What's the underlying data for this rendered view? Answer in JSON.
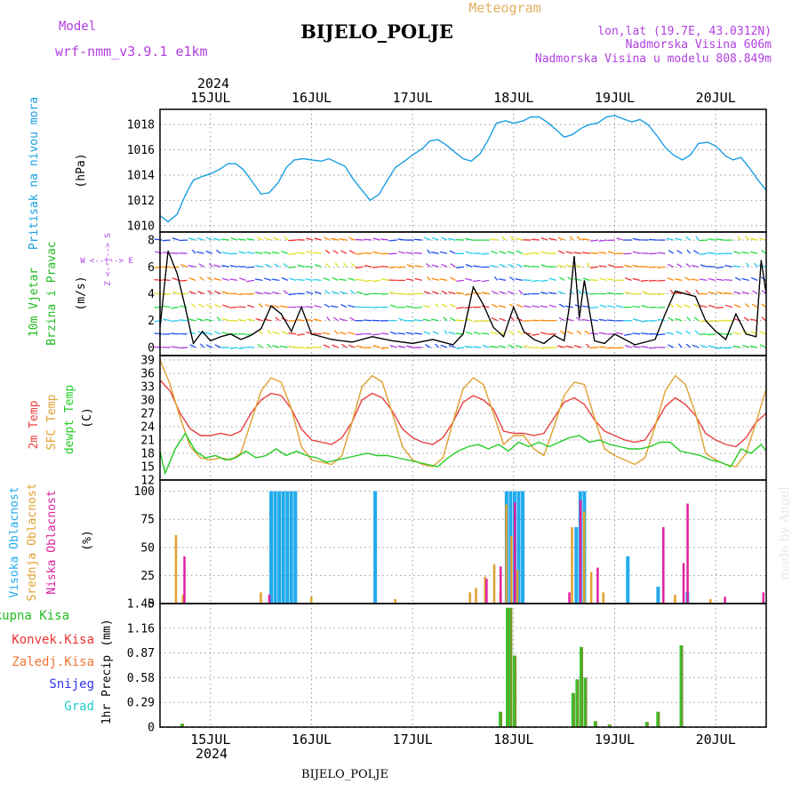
{
  "header": {
    "model_label": "Model",
    "model_name": "wrf-nmm_v3.9.1 e1km",
    "title": "BIJELO_POLJE",
    "meteogram_label": "Meteogram",
    "lonlat": "lon,lat (19.7E, 43.0312N)",
    "altitude": "Nadmorska Visina 606m",
    "model_altitude": "Nadmorska Visina u modelu 808.849m",
    "footer_station": "BIJELO_POLJE",
    "watermark": "made by Angel"
  },
  "colors": {
    "pressure": "#1a9ee0",
    "wind_title": "#22bb22",
    "wind_dir": "#b040e0",
    "temp2m": "#e84040",
    "sfc": "#e0a030",
    "dewpt": "#22cc22",
    "cloud_high": "#22aaee",
    "cloud_mid": "#e0a030",
    "cloud_low": "#e020a0",
    "precip_total": "#22bb22",
    "precip_conv": "#ee3333",
    "precip_frz": "#ee7733",
    "precip_snow": "#3333ee",
    "precip_hail": "#22cccc",
    "header_purple": "#b040e0",
    "meteogram": "#e0b060"
  },
  "chart_data": {
    "type": "line",
    "year": "2024",
    "time_axis": {
      "x_range_days": [
        14.5,
        20.5
      ],
      "ticks": [
        {
          "day": 15,
          "label": "15JUL"
        },
        {
          "day": 16,
          "label": "16JUL"
        },
        {
          "day": 17,
          "label": "17JUL"
        },
        {
          "day": 18,
          "label": "18JUL"
        },
        {
          "day": 19,
          "label": "19JUL"
        },
        {
          "day": 20,
          "label": "20JUL"
        }
      ]
    },
    "panels": [
      {
        "id": "pressure",
        "title": "Pritisak na nivou mora",
        "unit": "(hPa)",
        "ylim": [
          1009.5,
          1019.2
        ],
        "yticks": [
          1010,
          1012,
          1014,
          1016,
          1018
        ],
        "series": [
          {
            "key": "pressure",
            "x": [
              14.5,
              14.58,
              14.67,
              14.75,
              14.83,
              14.92,
              15.0,
              15.1,
              15.17,
              15.25,
              15.33,
              15.42,
              15.5,
              15.58,
              15.67,
              15.75,
              15.83,
              15.92,
              16.0,
              16.1,
              16.17,
              16.25,
              16.33,
              16.42,
              16.5,
              16.58,
              16.67,
              16.75,
              16.83,
              16.92,
              17.0,
              17.1,
              17.17,
              17.25,
              17.33,
              17.42,
              17.5,
              17.58,
              17.67,
              17.75,
              17.83,
              17.92,
              18.0,
              18.1,
              18.17,
              18.25,
              18.33,
              18.42,
              18.5,
              18.58,
              18.67,
              18.75,
              18.83,
              18.92,
              19.0,
              19.1,
              19.17,
              19.25,
              19.33,
              19.42,
              19.5,
              19.58,
              19.67,
              19.75,
              19.83,
              19.92,
              20.0,
              20.1,
              20.17,
              20.25,
              20.33,
              20.42,
              20.5
            ],
            "values": [
              1010.8,
              1010.3,
              1010.9,
              1012.4,
              1013.6,
              1013.9,
              1014.1,
              1014.5,
              1014.9,
              1014.9,
              1014.4,
              1013.4,
              1012.5,
              1012.6,
              1013.4,
              1014.6,
              1015.2,
              1015.3,
              1015.2,
              1015.1,
              1015.3,
              1015.0,
              1014.7,
              1013.6,
              1012.8,
              1012.0,
              1012.5,
              1013.6,
              1014.6,
              1015.1,
              1015.6,
              1016.1,
              1016.7,
              1016.8,
              1016.4,
              1015.8,
              1015.3,
              1015.1,
              1015.7,
              1016.8,
              1018.1,
              1018.3,
              1018.1,
              1018.3,
              1018.6,
              1018.6,
              1018.2,
              1017.6,
              1017.0,
              1017.2,
              1017.7,
              1018.0,
              1018.1,
              1018.6,
              1018.7,
              1018.4,
              1018.2,
              1018.4,
              1018.0,
              1017.1,
              1016.2,
              1015.6,
              1015.2,
              1015.6,
              1016.5,
              1016.6,
              1016.3,
              1015.5,
              1015.2,
              1015.4,
              1014.6,
              1013.6,
              1012.8
            ]
          }
        ]
      },
      {
        "id": "wind",
        "title_lines": [
          "10m Vjetar",
          "Brzina i Pravac"
        ],
        "unit": "(m/s)",
        "compass_ns": "Z <--|--> S",
        "compass_we": "W <--|--> E",
        "ylim": [
          -0.6,
          8.6
        ],
        "yticks": [
          0,
          2,
          4,
          6,
          8
        ],
        "series": [
          {
            "key": "wind_speed",
            "x": [
              14.5,
              14.58,
              14.67,
              14.75,
              14.83,
              14.92,
              15.0,
              15.1,
              15.2,
              15.3,
              15.4,
              15.5,
              15.6,
              15.7,
              15.8,
              15.9,
              16.0,
              16.2,
              16.4,
              16.6,
              16.8,
              17.0,
              17.2,
              17.4,
              17.5,
              17.6,
              17.7,
              17.8,
              17.9,
              18.0,
              18.1,
              18.2,
              18.3,
              18.4,
              18.5,
              18.55,
              18.6,
              18.65,
              18.7,
              18.8,
              18.9,
              19.0,
              19.2,
              19.4,
              19.5,
              19.6,
              19.7,
              19.8,
              19.9,
              20.0,
              20.1,
              20.2,
              20.3,
              20.4,
              20.45,
              20.5
            ],
            "values": [
              1.5,
              7.2,
              5.5,
              3.0,
              0.3,
              1.2,
              0.5,
              0.8,
              1.0,
              0.6,
              0.9,
              1.4,
              3.1,
              2.5,
              1.2,
              3.0,
              1.0,
              0.6,
              0.4,
              0.8,
              0.5,
              0.3,
              0.6,
              0.2,
              1.0,
              4.5,
              3.2,
              1.5,
              0.8,
              3.0,
              1.2,
              0.6,
              0.3,
              0.9,
              0.5,
              3.0,
              6.8,
              2.2,
              5.0,
              0.5,
              0.3,
              1.0,
              0.2,
              0.6,
              2.5,
              4.2,
              4.0,
              3.8,
              2.0,
              1.2,
              0.6,
              2.5,
              1.0,
              0.8,
              6.5,
              4.0
            ]
          }
        ]
      },
      {
        "id": "temperature",
        "title_lines": [
          "2m Temp",
          "SFC Temp",
          "dewpt Temp"
        ],
        "unit": "(C)",
        "ylim": [
          12,
          40
        ],
        "yticks": [
          12,
          15,
          18,
          21,
          24,
          27,
          30,
          33,
          36,
          39
        ],
        "series": [
          {
            "key": "temp2m",
            "x": [
              14.5,
              14.6,
              14.7,
              14.8,
              14.9,
              15.0,
              15.1,
              15.2,
              15.3,
              15.4,
              15.5,
              15.6,
              15.7,
              15.8,
              15.9,
              16.0,
              16.1,
              16.2,
              16.3,
              16.4,
              16.5,
              16.6,
              16.7,
              16.8,
              16.9,
              17.0,
              17.1,
              17.2,
              17.3,
              17.4,
              17.5,
              17.6,
              17.7,
              17.8,
              17.9,
              18.0,
              18.1,
              18.2,
              18.3,
              18.4,
              18.5,
              18.6,
              18.7,
              18.8,
              18.9,
              19.0,
              19.1,
              19.2,
              19.3,
              19.4,
              19.5,
              19.6,
              19.7,
              19.8,
              19.9,
              20.0,
              20.1,
              20.2,
              20.3,
              20.4,
              20.5
            ],
            "values": [
              34.5,
              32.0,
              27.0,
              23.5,
              22.0,
              22.0,
              22.5,
              22.0,
              23.0,
              27.0,
              30.0,
              31.5,
              31.0,
              28.0,
              23.5,
              21.0,
              20.5,
              20.0,
              21.5,
              25.0,
              30.0,
              31.5,
              30.5,
              27.5,
              23.5,
              21.5,
              20.5,
              20.0,
              21.5,
              25.0,
              29.5,
              31.0,
              30.0,
              28.0,
              23.0,
              22.5,
              22.5,
              22.0,
              22.5,
              26.0,
              29.5,
              30.5,
              29.0,
              25.5,
              23.0,
              22.0,
              21.0,
              20.5,
              21.0,
              24.5,
              28.5,
              30.5,
              29.0,
              26.5,
              22.5,
              21.0,
              20.0,
              19.5,
              21.5,
              25.0,
              27.0
            ]
          },
          {
            "key": "sfc",
            "x": [
              14.5,
              14.6,
              14.7,
              14.8,
              14.9,
              15.0,
              15.1,
              15.2,
              15.3,
              15.4,
              15.5,
              15.6,
              15.7,
              15.8,
              15.9,
              16.0,
              16.1,
              16.2,
              16.3,
              16.4,
              16.5,
              16.6,
              16.7,
              16.8,
              16.9,
              17.0,
              17.1,
              17.2,
              17.3,
              17.4,
              17.5,
              17.6,
              17.7,
              17.8,
              17.9,
              18.0,
              18.1,
              18.2,
              18.3,
              18.4,
              18.5,
              18.6,
              18.7,
              18.8,
              18.9,
              19.0,
              19.1,
              19.2,
              19.3,
              19.4,
              19.5,
              19.6,
              19.7,
              19.8,
              19.9,
              20.0,
              20.1,
              20.2,
              20.3,
              20.4,
              20.5
            ],
            "values": [
              39.0,
              33.5,
              26.0,
              19.5,
              17.0,
              16.5,
              17.0,
              16.5,
              18.0,
              25.0,
              32.0,
              35.0,
              34.0,
              28.0,
              19.5,
              16.5,
              16.0,
              15.5,
              17.5,
              25.0,
              33.0,
              35.5,
              34.0,
              27.0,
              19.5,
              16.5,
              15.5,
              15.0,
              17.0,
              25.0,
              32.5,
              35.0,
              33.5,
              27.0,
              20.0,
              22.0,
              22.0,
              19.0,
              17.5,
              24.0,
              31.0,
              34.0,
              33.5,
              26.0,
              19.0,
              17.5,
              16.5,
              15.5,
              17.0,
              24.0,
              32.0,
              35.5,
              33.5,
              27.0,
              18.0,
              16.5,
              15.5,
              15.0,
              18.0,
              25.0,
              32.5
            ]
          },
          {
            "key": "dewpt",
            "x": [
              14.5,
              14.55,
              14.65,
              14.75,
              14.85,
              14.95,
              15.05,
              15.15,
              15.25,
              15.35,
              15.45,
              15.55,
              15.65,
              15.75,
              15.85,
              15.95,
              16.05,
              16.15,
              16.25,
              16.35,
              16.45,
              16.55,
              16.65,
              16.75,
              16.85,
              16.95,
              17.05,
              17.15,
              17.25,
              17.35,
              17.45,
              17.55,
              17.65,
              17.75,
              17.85,
              17.95,
              18.05,
              18.15,
              18.25,
              18.35,
              18.45,
              18.55,
              18.65,
              18.75,
              18.85,
              18.95,
              19.05,
              19.15,
              19.25,
              19.35,
              19.45,
              19.55,
              19.65,
              19.75,
              19.85,
              19.95,
              20.05,
              20.15,
              20.25,
              20.35,
              20.45,
              20.5
            ],
            "values": [
              18.5,
              13.5,
              19.0,
              22.5,
              18.5,
              17.0,
              17.5,
              16.5,
              17.0,
              18.5,
              17.0,
              17.5,
              19.0,
              17.5,
              18.5,
              17.5,
              17.0,
              16.0,
              16.5,
              17.0,
              17.5,
              18.0,
              17.5,
              17.5,
              17.0,
              16.5,
              16.0,
              15.5,
              15.0,
              17.0,
              18.5,
              19.5,
              20.0,
              19.0,
              20.0,
              18.5,
              20.5,
              19.5,
              20.5,
              19.5,
              20.5,
              21.5,
              22.0,
              20.5,
              21.0,
              20.0,
              19.5,
              19.0,
              19.0,
              19.5,
              20.5,
              20.5,
              18.5,
              18.0,
              17.5,
              16.5,
              16.0,
              15.0,
              19.0,
              18.0,
              20.0,
              18.5
            ]
          }
        ]
      },
      {
        "id": "clouds",
        "title_lines": [
          "Visoka Oblacnost",
          "Srednja Oblacnost",
          "Niska Oblacnost"
        ],
        "unit": "(%)",
        "ylim": [
          0,
          110
        ],
        "yticks": [
          0,
          25,
          50,
          75,
          100
        ],
        "series": [
          {
            "key": "cloud_high",
            "x": [
              15.6,
              15.64,
              15.68,
              15.72,
              15.76,
              15.8,
              15.84,
              16.63,
              17.93,
              17.97,
              18.01,
              18.05,
              18.09,
              18.62,
              18.66,
              18.7,
              19.13,
              19.43,
              19.72
            ],
            "values": [
              100,
              100,
              100,
              100,
              100,
              100,
              100,
              100,
              100,
              100,
              100,
              100,
              100,
              68,
              100,
              100,
              42,
              15,
              10
            ]
          },
          {
            "key": "cloud_mid",
            "x": [
              14.68,
              14.75,
              15.52,
              16.02,
              16.85,
              17.59,
              17.65,
              17.74,
              17.83,
              17.89,
              17.95,
              18.0,
              18.06,
              18.6,
              18.72,
              18.79,
              18.91,
              19.62,
              19.97
            ],
            "values": [
              61,
              8,
              10,
              6,
              4,
              10,
              14,
              24,
              35,
              10,
              88,
              60,
              30,
              68,
              82,
              28,
              10,
              8,
              4
            ]
          },
          {
            "key": "cloud_low",
            "x": [
              14.72,
              15.56,
              17.71,
              17.85,
              17.99,
              18.53,
              18.64,
              18.81,
              19.46,
              19.66,
              19.7,
              20.07,
              20.45
            ],
            "values": [
              42,
              8,
              22,
              33,
              90,
              10,
              92,
              32,
              68,
              36,
              89,
              6,
              10
            ]
          }
        ]
      },
      {
        "id": "precip",
        "title": "1hr Precip",
        "unit": "(mm)",
        "legend": [
          "Ukupna Kisa",
          "Konvek.Kisa",
          "Zaledj.Kisa",
          "Snijeg",
          "Grad"
        ],
        "ylim": [
          0,
          1.45
        ],
        "yticks": [
          0,
          0.29,
          0.58,
          0.87,
          1.16,
          1.45
        ],
        "series": [
          {
            "key": "precip_total",
            "x": [
              14.72,
              17.87,
              17.94,
              17.97,
              18.01,
              18.59,
              18.63,
              18.67,
              18.71,
              18.81,
              18.95,
              19.32,
              19.43,
              19.66
            ],
            "values": [
              0.04,
              0.18,
              1.4,
              1.4,
              0.84,
              0.4,
              0.56,
              0.94,
              0.58,
              0.07,
              0.03,
              0.06,
              0.18,
              0.96
            ]
          }
        ]
      }
    ]
  }
}
